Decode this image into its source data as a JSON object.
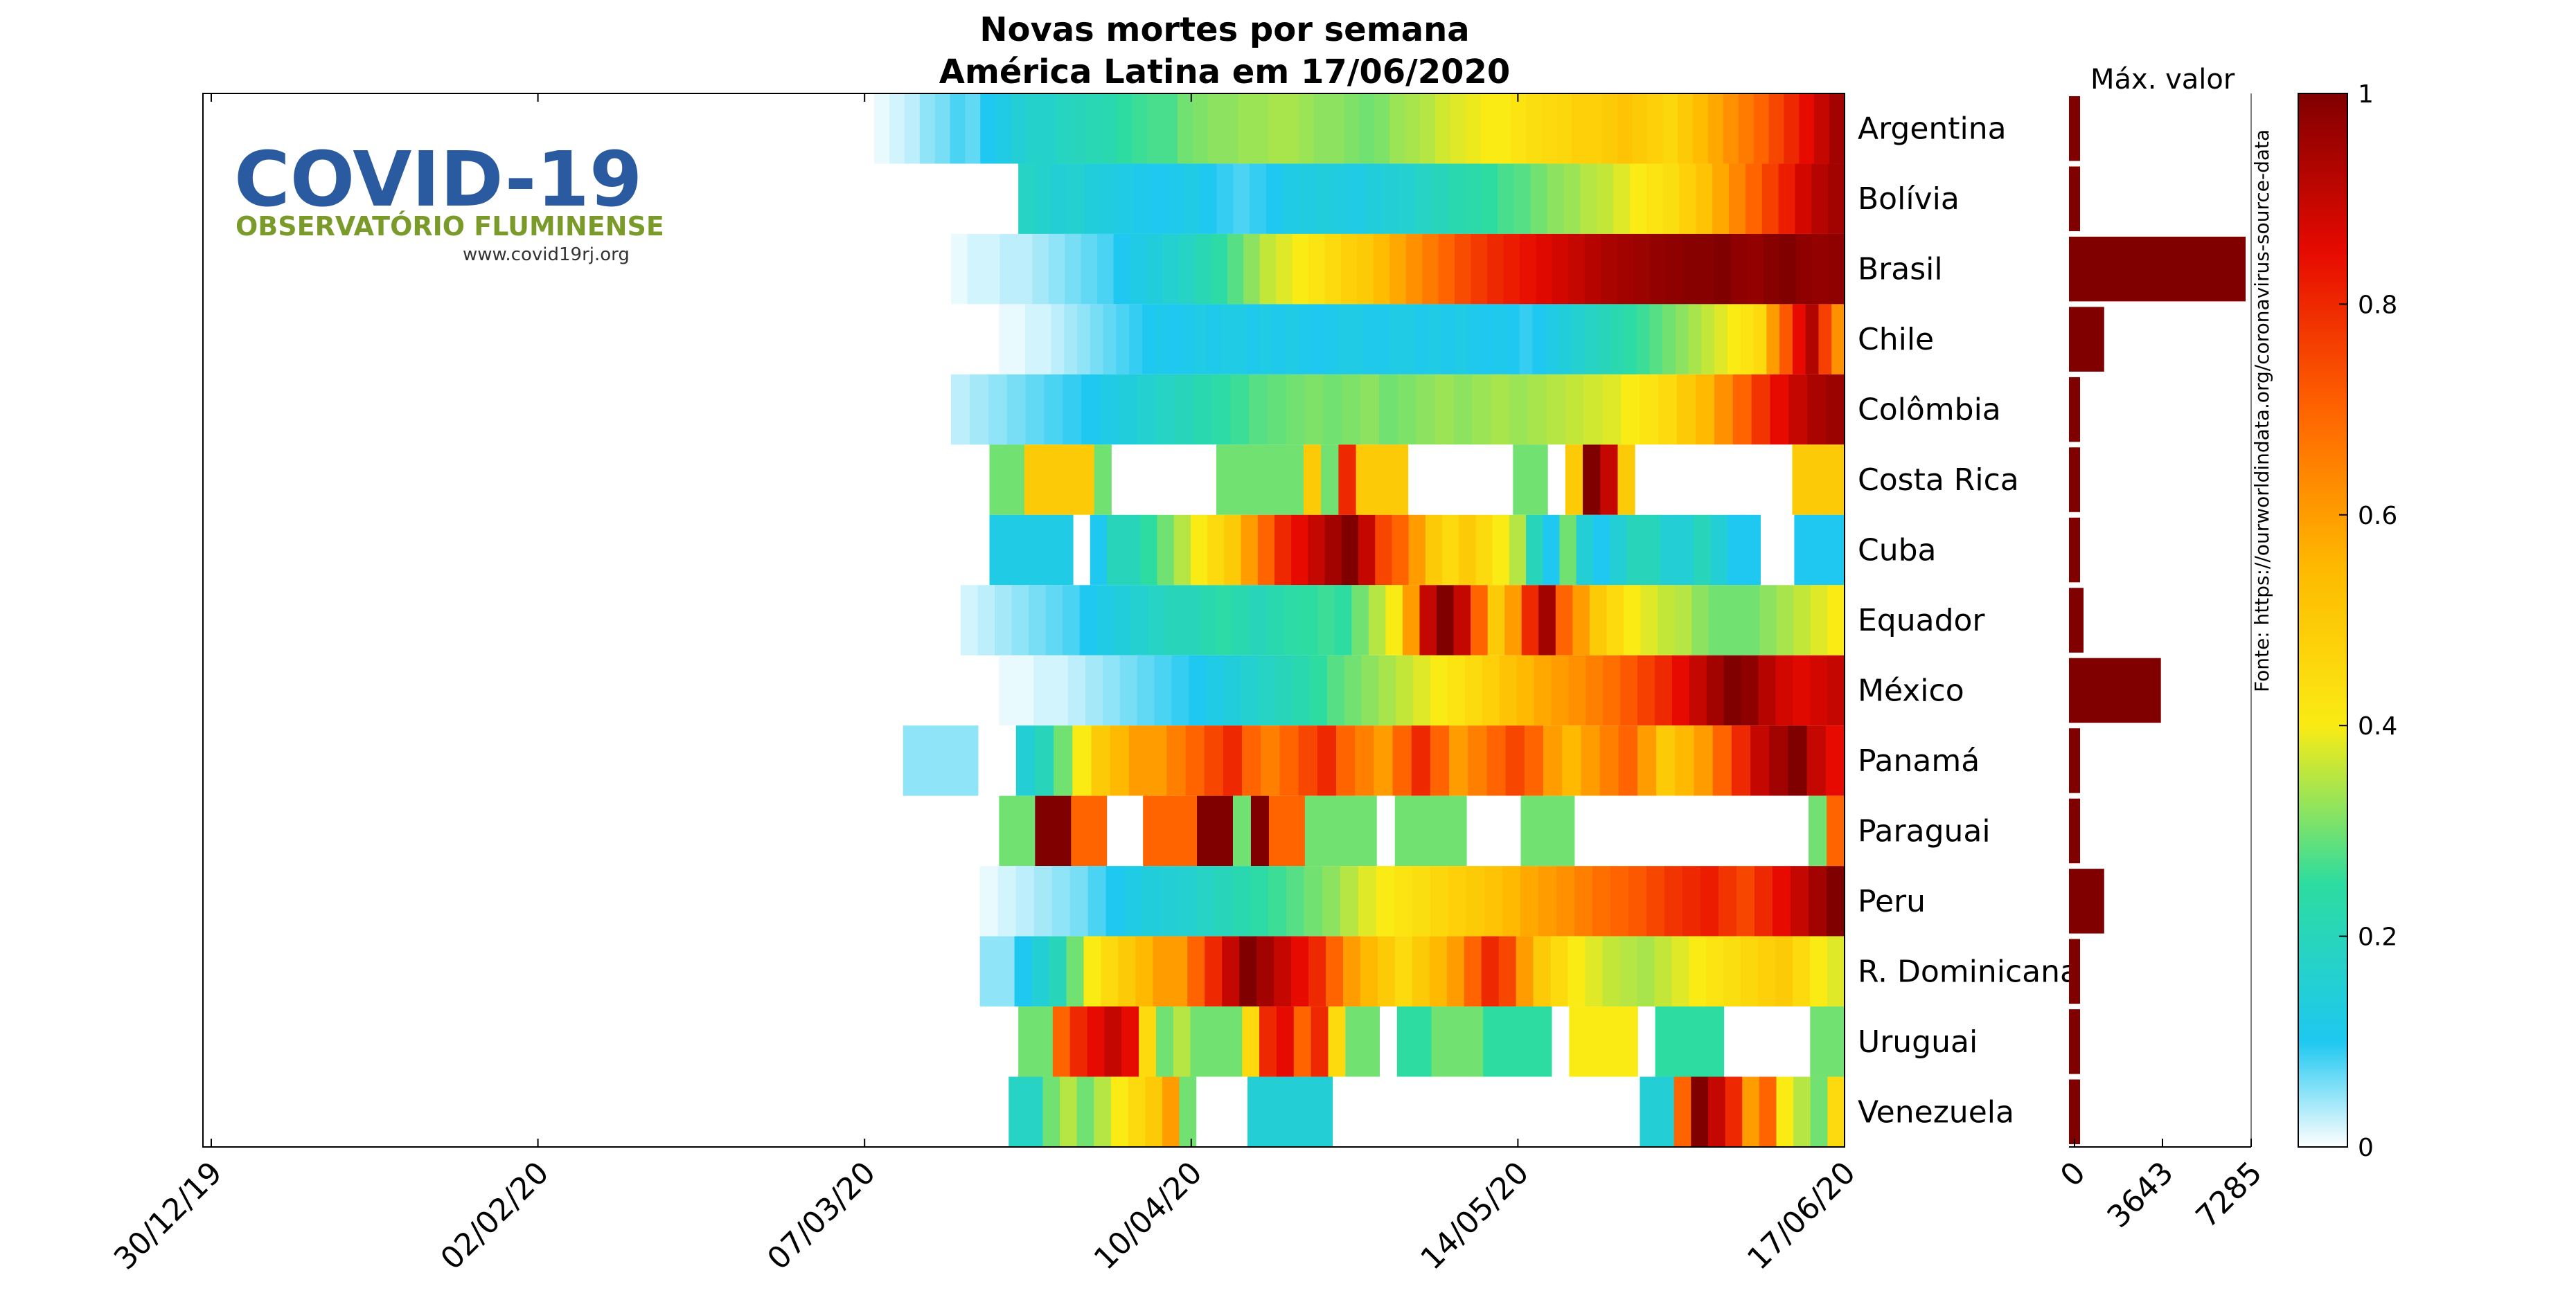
{
  "chart_data": {
    "type": "heatmap",
    "title": "Novas mortes por semana",
    "subtitle": "América Latina em 17/06/2020",
    "x_tick_labels": [
      "30/12/19",
      "02/02/20",
      "07/03/20",
      "10/04/20",
      "14/05/20",
      "17/06/20"
    ],
    "x_range": [
      "30/12/19",
      "17/06/20"
    ],
    "colorbar": {
      "range": [
        0,
        1
      ],
      "ticks": [
        "0",
        "0.2",
        "0.4",
        "0.6",
        "0.8",
        "1"
      ]
    },
    "side_bar": {
      "title": "Máx. valor",
      "ticks": [
        "0",
        "3643",
        "7285"
      ],
      "range": [
        0,
        7285
      ]
    },
    "source": "Fonte: https://ourworldindata.org/coronavirus-source-data",
    "logo": {
      "title": "COVID-19",
      "subtitle": "OBSERVATÓRIO FLUMINENSE",
      "url": "www.covid19rj.org"
    },
    "rows": [
      {
        "country": "Argentina",
        "start_day": 69,
        "max_value": 110,
        "values": [
          0.01,
          0.02,
          0.03,
          0.05,
          0.06,
          0.08,
          0.07,
          0.1,
          0.12,
          0.15,
          0.17,
          0.17,
          0.19,
          0.2,
          0.21,
          0.22,
          0.25,
          0.26,
          0.27,
          0.27,
          0.3,
          0.31,
          0.32,
          0.32,
          0.33,
          0.33,
          0.34,
          0.34,
          0.33,
          0.32,
          0.32,
          0.31,
          0.3,
          0.31,
          0.33,
          0.34,
          0.35,
          0.37,
          0.38,
          0.39,
          0.4,
          0.4,
          0.42,
          0.44,
          0.45,
          0.46,
          0.48,
          0.48,
          0.5,
          0.52,
          0.5,
          0.48,
          0.46,
          0.5,
          0.54,
          0.58,
          0.62,
          0.66,
          0.7,
          0.75,
          0.8,
          0.85,
          0.9,
          0.95
        ]
      },
      {
        "country": "Bolívia",
        "start_day": 84,
        "max_value": 60,
        "values": [
          0.18,
          0.17,
          0.15,
          0.16,
          0.14,
          0.13,
          0.12,
          0.11,
          0.1,
          0.11,
          0.12,
          0.1,
          0.09,
          0.08,
          0.09,
          0.1,
          0.12,
          0.13,
          0.14,
          0.13,
          0.12,
          0.14,
          0.15,
          0.16,
          0.18,
          0.2,
          0.22,
          0.23,
          0.25,
          0.27,
          0.28,
          0.3,
          0.32,
          0.33,
          0.35,
          0.36,
          0.38,
          0.4,
          0.42,
          0.44,
          0.48,
          0.52,
          0.58,
          0.64,
          0.7,
          0.76,
          0.82,
          0.88,
          0.92,
          0.95
        ]
      },
      {
        "country": "Brasil",
        "start_day": 77,
        "max_value": 7285,
        "values": [
          0.01,
          0.02,
          0.02,
          0.03,
          0.03,
          0.04,
          0.05,
          0.06,
          0.07,
          0.08,
          0.1,
          0.12,
          0.14,
          0.16,
          0.18,
          0.21,
          0.24,
          0.28,
          0.32,
          0.36,
          0.38,
          0.4,
          0.42,
          0.45,
          0.48,
          0.5,
          0.54,
          0.58,
          0.62,
          0.66,
          0.7,
          0.74,
          0.77,
          0.8,
          0.82,
          0.84,
          0.86,
          0.88,
          0.9,
          0.92,
          0.94,
          0.95,
          0.96,
          0.97,
          0.98,
          0.99,
          0.99,
          1.0,
          0.98,
          0.97,
          0.99,
          1.0,
          0.98,
          0.97,
          0.98
        ]
      },
      {
        "country": "Chile",
        "start_day": 82,
        "max_value": 1450,
        "values": [
          0.01,
          0.01,
          0.02,
          0.02,
          0.03,
          0.04,
          0.05,
          0.06,
          0.07,
          0.08,
          0.09,
          0.1,
          0.11,
          0.1,
          0.11,
          0.12,
          0.11,
          0.12,
          0.12,
          0.11,
          0.12,
          0.11,
          0.12,
          0.11,
          0.1,
          0.11,
          0.12,
          0.12,
          0.11,
          0.11,
          0.12,
          0.12,
          0.11,
          0.12,
          0.11,
          0.12,
          0.11,
          0.1,
          0.11,
          0.1,
          0.09,
          0.1,
          0.12,
          0.14,
          0.16,
          0.18,
          0.2,
          0.22,
          0.24,
          0.26,
          0.28,
          0.3,
          0.32,
          0.34,
          0.36,
          0.38,
          0.4,
          0.42,
          0.45,
          0.6,
          0.72,
          0.85,
          0.93,
          0.76,
          0.62
        ]
      },
      {
        "country": "Colômbia",
        "start_day": 77,
        "max_value": 230,
        "values": [
          0.03,
          0.04,
          0.05,
          0.06,
          0.07,
          0.08,
          0.09,
          0.1,
          0.12,
          0.14,
          0.16,
          0.18,
          0.2,
          0.22,
          0.24,
          0.26,
          0.28,
          0.29,
          0.3,
          0.31,
          0.3,
          0.31,
          0.32,
          0.3,
          0.31,
          0.32,
          0.33,
          0.32,
          0.33,
          0.34,
          0.33,
          0.34,
          0.35,
          0.36,
          0.37,
          0.38,
          0.4,
          0.42,
          0.45,
          0.5,
          0.55,
          0.62,
          0.7,
          0.78,
          0.85,
          0.9,
          0.94,
          0.96
        ]
      },
      {
        "country": "Costa Rica",
        "start_day": 81,
        "max_value": 4,
        "values": [
          0.3,
          0.3,
          0.5,
          0.5,
          0.5,
          0.5,
          0.3,
          0.0,
          0.0,
          0.0,
          0.0,
          0.0,
          0.0,
          0.3,
          0.3,
          0.3,
          0.3,
          0.3,
          0.5,
          0.3,
          0.8,
          0.5,
          0.5,
          0.5,
          0.0,
          0.0,
          0.0,
          0.0,
          0.0,
          0.0,
          0.3,
          0.3,
          0.0,
          0.5,
          1.0,
          0.9,
          0.5,
          0.0,
          0.0,
          0.0,
          0.0,
          0.0,
          0.0,
          0.0,
          0.0,
          0.0,
          0.5,
          0.5,
          0.5
        ]
      },
      {
        "country": "Cuba",
        "start_day": 81,
        "max_value": 12,
        "values": [
          0.12,
          0.12,
          0.12,
          0.12,
          0.12,
          0.0,
          0.1,
          0.2,
          0.2,
          0.25,
          0.3,
          0.35,
          0.4,
          0.45,
          0.5,
          0.6,
          0.7,
          0.8,
          0.85,
          0.9,
          0.95,
          1.0,
          0.9,
          0.75,
          0.7,
          0.6,
          0.5,
          0.45,
          0.5,
          0.45,
          0.4,
          0.35,
          0.2,
          0.1,
          0.3,
          0.15,
          0.1,
          0.15,
          0.2,
          0.2,
          0.15,
          0.15,
          0.2,
          0.15,
          0.1,
          0.1,
          0.0,
          0.0,
          0.1,
          0.1,
          0.1
        ]
      },
      {
        "country": "Equador",
        "start_day": 78,
        "max_value": 600,
        "values": [
          0.02,
          0.03,
          0.04,
          0.05,
          0.06,
          0.07,
          0.08,
          0.1,
          0.12,
          0.14,
          0.16,
          0.18,
          0.2,
          0.2,
          0.22,
          0.24,
          0.22,
          0.2,
          0.22,
          0.24,
          0.25,
          0.26,
          0.25,
          0.3,
          0.35,
          0.4,
          0.6,
          0.9,
          1.0,
          0.9,
          0.7,
          0.5,
          0.6,
          0.8,
          0.95,
          0.7,
          0.6,
          0.5,
          0.45,
          0.4,
          0.38,
          0.36,
          0.35,
          0.32,
          0.3,
          0.3,
          0.3,
          0.32,
          0.34,
          0.36,
          0.38,
          0.4
        ]
      },
      {
        "country": "México",
        "start_day": 82,
        "max_value": 3790,
        "values": [
          0.01,
          0.01,
          0.02,
          0.02,
          0.03,
          0.04,
          0.05,
          0.06,
          0.07,
          0.08,
          0.09,
          0.1,
          0.12,
          0.14,
          0.16,
          0.18,
          0.2,
          0.22,
          0.25,
          0.28,
          0.3,
          0.32,
          0.34,
          0.36,
          0.38,
          0.4,
          0.42,
          0.45,
          0.48,
          0.52,
          0.55,
          0.58,
          0.6,
          0.62,
          0.65,
          0.68,
          0.72,
          0.76,
          0.8,
          0.85,
          0.9,
          0.95,
          1.0,
          0.98,
          0.92,
          0.88,
          0.86,
          0.88,
          0.9
        ]
      },
      {
        "country": "Panamá",
        "start_day": 72,
        "max_value": 45,
        "values": [
          0.05,
          0.05,
          0.05,
          0.05,
          0.0,
          0.0,
          0.15,
          0.2,
          0.3,
          0.4,
          0.5,
          0.55,
          0.6,
          0.6,
          0.65,
          0.7,
          0.75,
          0.8,
          0.7,
          0.65,
          0.7,
          0.75,
          0.8,
          0.7,
          0.65,
          0.6,
          0.7,
          0.8,
          0.7,
          0.6,
          0.65,
          0.7,
          0.75,
          0.7,
          0.6,
          0.55,
          0.6,
          0.65,
          0.7,
          0.6,
          0.5,
          0.55,
          0.6,
          0.7,
          0.8,
          0.9,
          0.95,
          1.0,
          0.9,
          0.85
        ]
      },
      {
        "country": "Paraguai",
        "start_day": 82,
        "max_value": 3,
        "values": [
          0.3,
          0.3,
          1.0,
          1.0,
          0.7,
          0.7,
          0.0,
          0.0,
          0.7,
          0.7,
          0.7,
          1.0,
          1.0,
          0.3,
          1.0,
          0.7,
          0.7,
          0.3,
          0.3,
          0.3,
          0.3,
          0.0,
          0.3,
          0.3,
          0.3,
          0.3,
          0.0,
          0.0,
          0.0,
          0.3,
          0.3,
          0.3,
          0.0,
          0.0,
          0.0,
          0.0,
          0.0,
          0.0,
          0.0,
          0.0,
          0.0,
          0.0,
          0.0,
          0.0,
          0.0,
          0.3,
          0.7
        ]
      },
      {
        "country": "Peru",
        "start_day": 80,
        "max_value": 1450,
        "values": [
          0.01,
          0.02,
          0.03,
          0.04,
          0.05,
          0.06,
          0.08,
          0.1,
          0.12,
          0.14,
          0.15,
          0.16,
          0.18,
          0.2,
          0.22,
          0.24,
          0.26,
          0.28,
          0.3,
          0.32,
          0.35,
          0.38,
          0.4,
          0.42,
          0.44,
          0.46,
          0.48,
          0.5,
          0.52,
          0.55,
          0.58,
          0.6,
          0.62,
          0.65,
          0.68,
          0.7,
          0.72,
          0.75,
          0.78,
          0.8,
          0.82,
          0.78,
          0.75,
          0.8,
          0.85,
          0.9,
          0.95,
          1.0
        ]
      },
      {
        "country": "R. Dominicana",
        "start_day": 80,
        "max_value": 50,
        "values": [
          0.05,
          0.05,
          0.1,
          0.15,
          0.2,
          0.3,
          0.4,
          0.45,
          0.5,
          0.55,
          0.6,
          0.6,
          0.7,
          0.8,
          0.9,
          1.0,
          0.95,
          0.9,
          0.85,
          0.8,
          0.7,
          0.6,
          0.55,
          0.5,
          0.45,
          0.5,
          0.55,
          0.6,
          0.7,
          0.8,
          0.75,
          0.6,
          0.5,
          0.45,
          0.4,
          0.38,
          0.36,
          0.35,
          0.34,
          0.36,
          0.38,
          0.4,
          0.42,
          0.44,
          0.46,
          0.48,
          0.5,
          0.45,
          0.4,
          0.38
        ]
      },
      {
        "country": "Uruguai",
        "start_day": 84,
        "max_value": 3,
        "values": [
          0.3,
          0.3,
          0.7,
          0.8,
          0.85,
          0.9,
          0.85,
          0.45,
          0.3,
          0.35,
          0.3,
          0.3,
          0.3,
          0.45,
          0.8,
          0.85,
          0.7,
          0.8,
          0.45,
          0.3,
          0.3,
          0.0,
          0.25,
          0.25,
          0.3,
          0.3,
          0.3,
          0.25,
          0.25,
          0.25,
          0.25,
          0.0,
          0.4,
          0.4,
          0.4,
          0.4,
          0.0,
          0.25,
          0.25,
          0.25,
          0.25,
          0.0,
          0.0,
          0.0,
          0.0,
          0.0,
          0.3,
          0.3
        ]
      },
      {
        "country": "Venezuela",
        "start_day": 83,
        "max_value": 3,
        "values": [
          0.18,
          0.18,
          0.3,
          0.35,
          0.3,
          0.35,
          0.4,
          0.45,
          0.5,
          0.6,
          0.3,
          0.0,
          0.0,
          0.0,
          0.15,
          0.15,
          0.15,
          0.15,
          0.15,
          0.0,
          0.0,
          0.0,
          0.0,
          0.0,
          0.0,
          0.0,
          0.0,
          0.0,
          0.0,
          0.0,
          0.0,
          0.0,
          0.0,
          0.0,
          0.0,
          0.0,
          0.0,
          0.15,
          0.15,
          0.7,
          1.0,
          0.9,
          0.8,
          0.6,
          0.7,
          0.4,
          0.35,
          0.3,
          0.45
        ]
      }
    ]
  }
}
